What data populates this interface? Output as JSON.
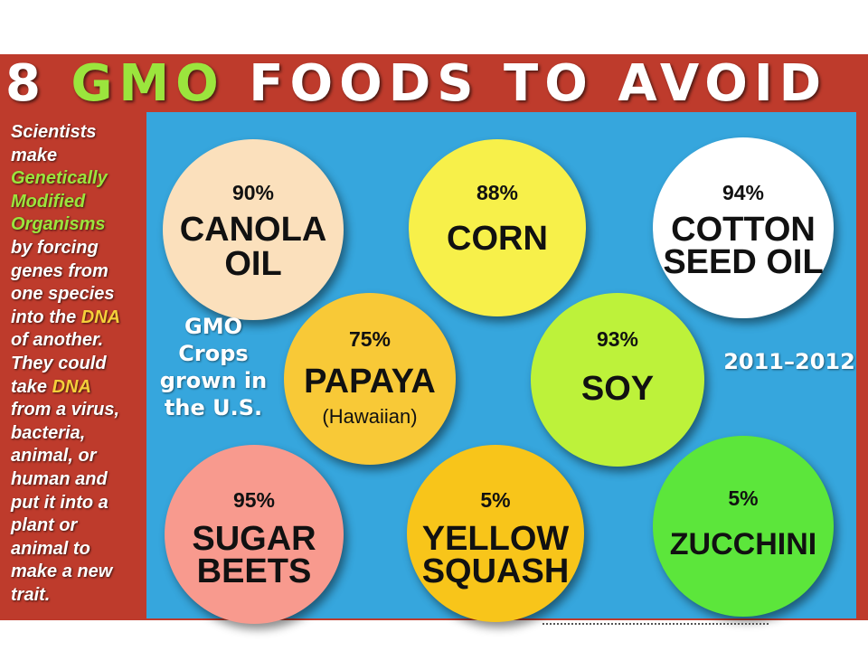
{
  "title": {
    "number": "8",
    "gmo": "GMO",
    "rest": "FOODS TO AVOID"
  },
  "sidebar": {
    "line1": "Scientists",
    "line2": "make",
    "hl1": "Genetically",
    "hl2": "Modified",
    "hl3": "Organisms",
    "line3": "by forcing",
    "line4": "genes from",
    "line5": "one species",
    "line6a": "into the ",
    "dna1": "DNA",
    "line7": "of another.",
    "line8": "They could",
    "line9a": "take ",
    "dna2": "DNA",
    "line10": "from a virus,",
    "line11": "bacteria,",
    "line12": "animal, or",
    "line13": "human and",
    "line14": "put it into a",
    "line15": "plant or",
    "line16": "animal to",
    "line17": "make a new",
    "line18": "trait."
  },
  "caption": {
    "line1": "GMO",
    "line2": "Crops",
    "line3": "grown in",
    "line4": "the U.S."
  },
  "years": "2011–2012",
  "foods": [
    {
      "pct": "90%",
      "name1": "CANOLA",
      "name2": "OIL",
      "color": "#fbe0bc"
    },
    {
      "pct": "88%",
      "name1": "CORN",
      "color": "#f7f04a"
    },
    {
      "pct": "94%",
      "name1": "COTTON",
      "name2": "SEED OIL",
      "color": "#ffffff"
    },
    {
      "pct": "75%",
      "name1": "PAPAYA",
      "sub": "(Hawaiian)",
      "color": "#f8c937"
    },
    {
      "pct": "93%",
      "name1": "SOY",
      "color": "#bdf23a"
    },
    {
      "pct": "95%",
      "name1": "SUGAR",
      "name2": "BEETS",
      "color": "#f89a8e"
    },
    {
      "pct": "5%",
      "name1": "YELLOW",
      "name2": "SQUASH",
      "color": "#f8c51a"
    },
    {
      "pct": "5%",
      "name1": "ZUCCHINI",
      "color": "#5ce63b"
    }
  ]
}
